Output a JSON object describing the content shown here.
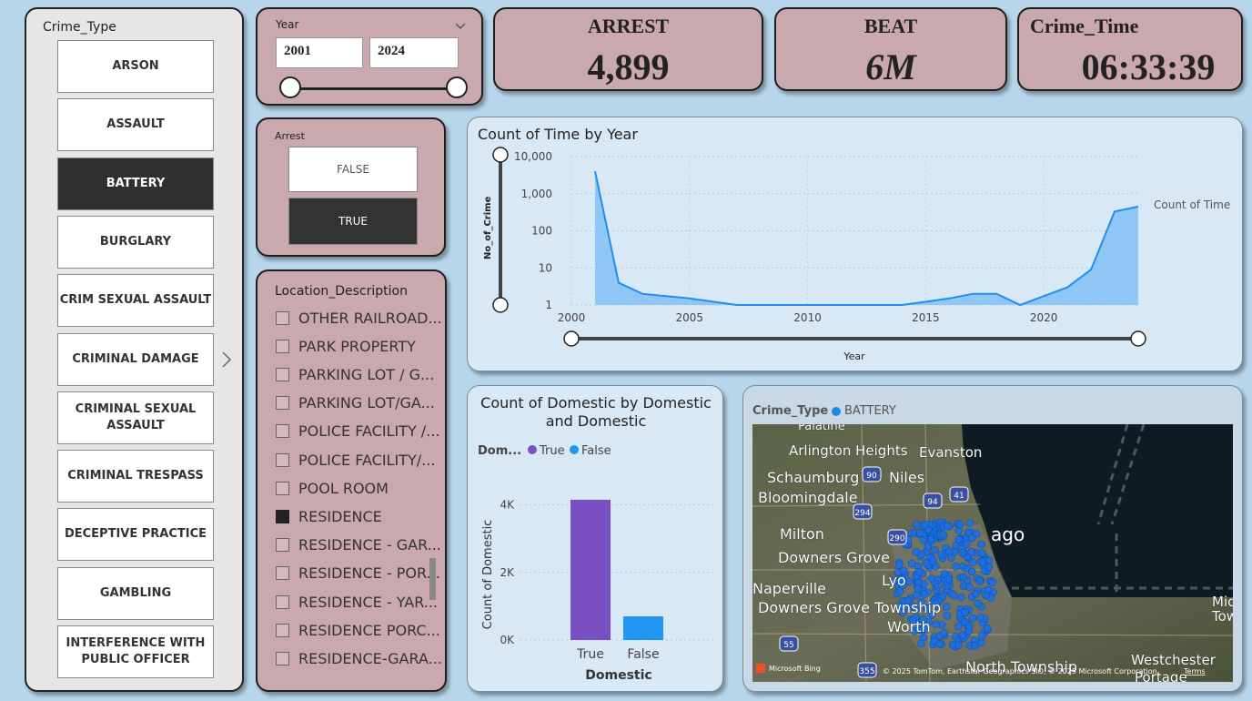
{
  "crime_type_slicer": {
    "title": "Crime_Type",
    "items": [
      {
        "label": "ARSON",
        "selected": false
      },
      {
        "label": "ASSAULT",
        "selected": false
      },
      {
        "label": "BATTERY",
        "selected": true
      },
      {
        "label": "BURGLARY",
        "selected": false
      },
      {
        "label": "CRIM SEXUAL ASSAULT",
        "selected": false
      },
      {
        "label": "CRIMINAL DAMAGE",
        "selected": false
      },
      {
        "label": "CRIMINAL SEXUAL ASSAULT",
        "selected": false
      },
      {
        "label": "CRIMINAL TRESPASS",
        "selected": false
      },
      {
        "label": "DECEPTIVE PRACTICE",
        "selected": false
      },
      {
        "label": "GAMBLING",
        "selected": false
      },
      {
        "label": "INTERFERENCE WITH PUBLIC OFFICER",
        "selected": false
      }
    ],
    "next_icon": "chevron-right-icon"
  },
  "year_slicer": {
    "title": "Year",
    "from": "2001",
    "to": "2024",
    "dropdown_icon": "chevron-down-icon"
  },
  "arrest_slicer": {
    "title": "Arrest",
    "options": [
      {
        "label": "FALSE",
        "selected": false
      },
      {
        "label": "TRUE",
        "selected": true
      }
    ]
  },
  "location_slicer": {
    "title": "Location_Description",
    "items": [
      {
        "label": "OTHER RAILROAD...",
        "checked": false
      },
      {
        "label": "PARK PROPERTY",
        "checked": false
      },
      {
        "label": "PARKING LOT / G...",
        "checked": false
      },
      {
        "label": "PARKING LOT/GA...",
        "checked": false
      },
      {
        "label": "POLICE FACILITY /...",
        "checked": false
      },
      {
        "label": "POLICE FACILITY/...",
        "checked": false
      },
      {
        "label": "POOL ROOM",
        "checked": false
      },
      {
        "label": "RESIDENCE",
        "checked": true
      },
      {
        "label": "RESIDENCE - GAR...",
        "checked": false
      },
      {
        "label": "RESIDENCE - POR...",
        "checked": false
      },
      {
        "label": "RESIDENCE - YAR...",
        "checked": false
      },
      {
        "label": "RESIDENCE PORC...",
        "checked": false
      },
      {
        "label": "RESIDENCE-GARA...",
        "checked": false
      }
    ]
  },
  "kpis": {
    "arrest": {
      "title": "ARREST",
      "value": "4,899"
    },
    "beat": {
      "title": "BEAT",
      "value": "6M"
    },
    "crime_time": {
      "title": "Crime_Time",
      "value": "06:33:39"
    }
  },
  "colors": {
    "page_bg": "#b7d6ec",
    "pink_panel": "#c9a9ad",
    "blue_panel": "#d9e8f5",
    "area_fill": "#8fc6f5",
    "area_line": "#1f8ef0",
    "bar_true": "#7b4fc4",
    "bar_false": "#2196f3",
    "map_dots": "#1e6fe0"
  },
  "chart_data": [
    {
      "type": "area",
      "title": "Count of Time by Year",
      "xlabel": "Year",
      "ylabel": "No_of_Crime",
      "y_scale": "log",
      "ylim": [
        1,
        10000
      ],
      "xlim": [
        2000,
        2024
      ],
      "y_ticks": [
        "10,000",
        "1,000",
        "100",
        "10",
        "1"
      ],
      "x_ticks": [
        "2000",
        "2005",
        "2010",
        "2015",
        "2020"
      ],
      "series": [
        {
          "name": "Count of Time",
          "x": [
            2001,
            2002,
            2003,
            2005,
            2007,
            2010,
            2014,
            2016,
            2017,
            2018,
            2019,
            2021,
            2022,
            2023,
            2024
          ],
          "values": [
            4000,
            4,
            2,
            1.5,
            1,
            1,
            1,
            1.5,
            2,
            2,
            1,
            3,
            9,
            330,
            450
          ]
        }
      ],
      "legend_label": "Count of Time"
    },
    {
      "type": "bar",
      "title": "Count of Domestic by Domestic and Domestic",
      "legend_title": "Dom...",
      "legend": [
        "True",
        "False"
      ],
      "categories": [
        "True",
        "False"
      ],
      "values": [
        4150,
        700
      ],
      "xlabel": "Domestic",
      "ylabel": "Count of Domestic",
      "y_ticks": [
        "4K",
        "2K",
        "0K"
      ],
      "ylim": [
        0,
        4500
      ]
    }
  ],
  "map": {
    "legend_title": "Crime_Type",
    "legend_item": "BATTERY",
    "labels": [
      "Palatine",
      "Arlington Heights",
      "Evanston",
      "Schaumburg",
      "Niles",
      "Bloomingdale",
      "Milton",
      "Downers Grove",
      "Naperville",
      "Downers Grove Township",
      "Worth",
      "North Township",
      "Westchester",
      "Portage",
      "Mich",
      "Tow",
      "ago",
      "Lyo"
    ],
    "highway_shields": [
      "90",
      "94",
      "41",
      "294",
      "290",
      "55",
      "355"
    ],
    "attribution": "© 2025 TomTom, Earthstar Geographics SIO, © 2025 Microsoft Corporation",
    "terms": "Terms",
    "logo": "Microsoft Bing"
  }
}
